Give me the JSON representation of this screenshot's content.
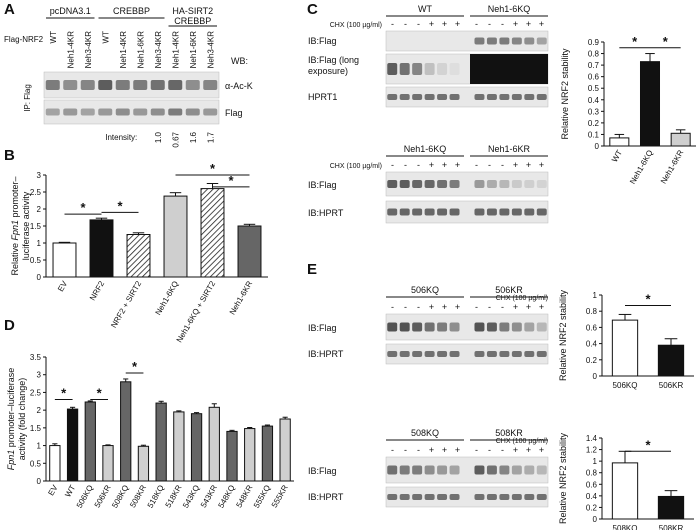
{
  "panels": {
    "A": {
      "label": "A",
      "groups": [
        "pcDNA3.1",
        "CREBBP",
        "HA-SIRT2\nCREBBP"
      ],
      "row_label": "Flag-NRF2",
      "lanes": [
        "WT",
        "Neh1-4KR",
        "Neh3-4KR",
        "WT",
        "Neh1-4KR",
        "Neh1-6KR",
        "Neh3-4KR",
        "Neh1-4KR",
        "Neh1-6KR",
        "Neh3-4KR"
      ],
      "wb": "WB:",
      "ip": "IP: Flag",
      "blots": [
        "α-Ac-K",
        "Flag"
      ],
      "intensity_label": "Intensity:",
      "intensity": [
        "1.0",
        "0.67",
        "1.6",
        "1.7"
      ]
    },
    "B": {
      "label": "B"
    },
    "C": {
      "label": "C",
      "top_groups": [
        "WT",
        "Neh1-6KQ"
      ],
      "bot_groups": [
        "Neh1-6KQ",
        "Neh1-6KR"
      ],
      "chx": "CHX (100 µg/ml)",
      "signs": [
        "-",
        "-",
        "-",
        "+",
        "+",
        "+"
      ],
      "top_blots": [
        "IB:Flag",
        "IB:Flag (long\nexposure)",
        "HPRT1"
      ],
      "bot_blots": [
        "IB:Flag",
        "IB:HPRT"
      ]
    },
    "D": {
      "label": "D"
    },
    "E": {
      "label": "E",
      "top_groups": [
        "506KQ",
        "506KR"
      ],
      "bot_groups": [
        "508KQ",
        "508KR"
      ],
      "chx": "CHX (100 µg/ml)",
      "signs": [
        "-",
        "-",
        "-",
        "+",
        "+",
        "+"
      ],
      "blots": [
        "IB:Flag",
        "IB:HPRT"
      ]
    }
  },
  "chart_data": [
    {
      "id": "B",
      "type": "bar",
      "ylabel": "Relative Fpn1 promoter–\nluciferase activity",
      "ylim": [
        0,
        3
      ],
      "yticks": [
        0,
        0.5,
        1,
        1.5,
        2,
        2.5,
        3
      ],
      "categories": [
        "EV",
        "NRF2",
        "NRF2 + SIRT2",
        "Neh1-6KQ",
        "Neh1-6KQ + SIRT2",
        "Neh1-6KR"
      ],
      "values": [
        1.0,
        1.68,
        1.25,
        2.38,
        2.6,
        1.5
      ],
      "errors": [
        0.02,
        0.05,
        0.05,
        0.1,
        0.15,
        0.05
      ],
      "fills": [
        "white",
        "black",
        "hatch",
        "light",
        "hatch",
        "dark"
      ],
      "sig": [
        [
          0,
          1
        ],
        [
          1,
          2
        ],
        [
          3,
          5
        ],
        [
          4,
          5
        ]
      ],
      "star": "*"
    },
    {
      "id": "C",
      "type": "bar",
      "ylabel": "Relative NRF2 stability",
      "ylim": [
        0,
        0.9
      ],
      "yticks": [
        0,
        0.1,
        0.2,
        0.3,
        0.4,
        0.5,
        0.6,
        0.7,
        0.8,
        0.9
      ],
      "categories": [
        "WT",
        "Neh1-6KQ",
        "Neh1-6KR"
      ],
      "values": [
        0.07,
        0.73,
        0.11
      ],
      "errors": [
        0.03,
        0.07,
        0.03
      ],
      "fills": [
        "white",
        "black",
        "light"
      ],
      "sig": [
        [
          0,
          1
        ],
        [
          1,
          2
        ]
      ],
      "star": "*"
    },
    {
      "id": "D",
      "type": "bar",
      "ylabel": "Fpn1 promoter–luciferase\nactivity (fold change)",
      "ylim": [
        0,
        3.5
      ],
      "yticks": [
        0,
        0.5,
        1,
        1.5,
        2,
        2.5,
        3,
        3.5
      ],
      "categories": [
        "EV",
        "WT",
        "506KQ",
        "506KR",
        "508KQ",
        "508KR",
        "518KQ",
        "518KR",
        "543KQ",
        "543KR",
        "548KQ",
        "548KR",
        "555KQ",
        "555KR"
      ],
      "values": [
        1.0,
        2.03,
        2.23,
        1.0,
        2.8,
        0.98,
        2.2,
        1.95,
        1.9,
        2.08,
        1.4,
        1.48,
        1.55,
        1.75
      ],
      "errors": [
        0.05,
        0.05,
        0.03,
        0.02,
        0.08,
        0.03,
        0.05,
        0.03,
        0.03,
        0.1,
        0.03,
        0.03,
        0.03,
        0.05
      ],
      "fills": [
        "white",
        "black",
        "dark",
        "light",
        "dark",
        "light",
        "dark",
        "light",
        "dark",
        "light",
        "dark",
        "light",
        "dark",
        "light"
      ],
      "sig": [
        [
          0,
          1
        ],
        [
          2,
          3
        ],
        [
          4,
          5
        ]
      ],
      "star": "*"
    },
    {
      "id": "E1",
      "type": "bar",
      "ylabel": "Relative NRF2 stability",
      "ylim": [
        0,
        1
      ],
      "yticks": [
        0,
        0.2,
        0.4,
        0.6,
        0.8,
        1
      ],
      "categories": [
        "506KQ",
        "506KR"
      ],
      "values": [
        0.69,
        0.38
      ],
      "errors": [
        0.07,
        0.08
      ],
      "fills": [
        "white",
        "black"
      ],
      "sig": [
        [
          0,
          1
        ]
      ],
      "star": "*"
    },
    {
      "id": "E2",
      "type": "bar",
      "ylabel": "Relative NRF2 stability",
      "ylim": [
        0,
        1.4
      ],
      "yticks": [
        0,
        0.2,
        0.4,
        0.6,
        0.8,
        1,
        1.2,
        1.4
      ],
      "categories": [
        "508KQ",
        "508KR"
      ],
      "values": [
        0.97,
        0.39
      ],
      "errors": [
        0.2,
        0.1
      ],
      "fills": [
        "white",
        "black"
      ],
      "sig": [
        [
          0,
          1
        ]
      ],
      "star": "*"
    }
  ]
}
